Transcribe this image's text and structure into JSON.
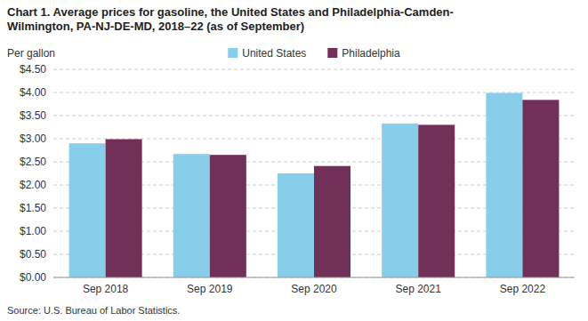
{
  "chart_data": {
    "type": "bar",
    "title": "Chart 1. Average prices for gasoline, the United States and Philadelphia-Camden-\nWilmington, PA-NJ-DE-MD, 2018–22 (as of September)",
    "y_label": "Per gallon",
    "source": "Source: U.S. Bureau of Labor Statistics.",
    "categories": [
      "Sep 2018",
      "Sep 2019",
      "Sep 2020",
      "Sep 2021",
      "Sep 2022"
    ],
    "series": [
      {
        "name": "United States",
        "color": "#87CEEB",
        "values": [
          2.9,
          2.67,
          2.25,
          3.33,
          3.99
        ]
      },
      {
        "name": "Philadelphia",
        "color": "#722F57",
        "values": [
          2.99,
          2.65,
          2.41,
          3.3,
          3.84
        ]
      }
    ],
    "ylim": [
      0,
      4.5
    ],
    "yticks": [
      {
        "value": 0.0,
        "label": "$0.00"
      },
      {
        "value": 0.5,
        "label": "$0.50"
      },
      {
        "value": 1.0,
        "label": "$1.00"
      },
      {
        "value": 1.5,
        "label": "$1.50"
      },
      {
        "value": 2.0,
        "label": "$2.00"
      },
      {
        "value": 2.5,
        "label": "$2.50"
      },
      {
        "value": 3.0,
        "label": "$3.00"
      },
      {
        "value": 3.5,
        "label": "$3.50"
      },
      {
        "value": 4.0,
        "label": "$4.00"
      },
      {
        "value": 4.5,
        "label": "$4.50"
      }
    ],
    "grid": true,
    "legend": "top"
  }
}
